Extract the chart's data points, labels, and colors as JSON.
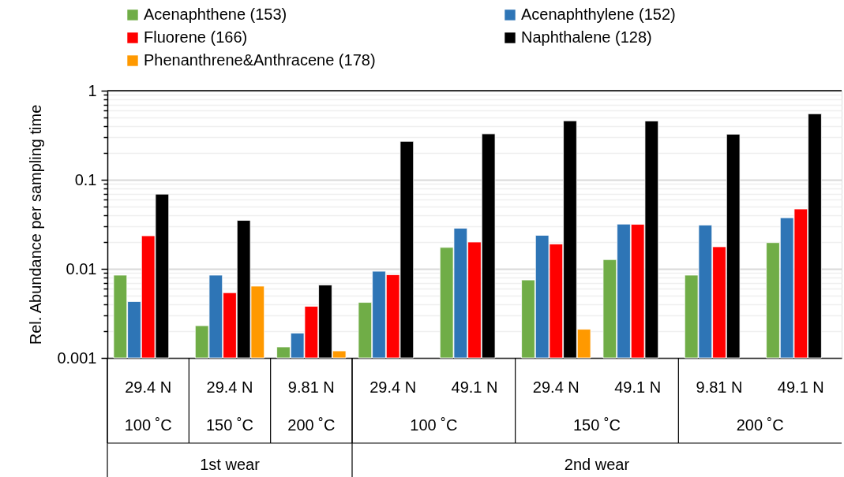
{
  "chart_data": {
    "type": "bar",
    "ylabel": "Rel. Abundance per sampling time",
    "categories": [
      "29.4 N",
      "29.4 N",
      "9.81 N",
      "29.4 N",
      "49.1 N",
      "29.4 N",
      "49.1 N",
      "9.81 N",
      "49.1 N"
    ],
    "annotations": [
      "100 ˚C",
      "150 ˚C",
      "200 ˚C",
      "100 ˚C",
      "150 ˚C",
      "200 ˚C",
      "1st wear",
      "2nd wear"
    ],
    "series": [
      {
        "name": "Acenaphthene (153)",
        "color": "#70ad47",
        "values": [
          0.0085,
          0.0023,
          0.00133,
          0.0042,
          0.0174,
          0.0075,
          0.0127,
          0.0085,
          0.0197
        ]
      },
      {
        "name": "Acenaphthylene (152)",
        "color": "#2e75b6",
        "values": [
          0.0043,
          0.0085,
          0.0019,
          0.0094,
          0.0286,
          0.0238,
          0.0318,
          0.031,
          0.0375
        ]
      },
      {
        "name": "Fluorene (166)",
        "color": "#ff0000",
        "values": [
          0.0235,
          0.0054,
          0.0038,
          0.0086,
          0.02,
          0.019,
          0.0316,
          0.0177,
          0.047
        ]
      },
      {
        "name": "Naphthalene (128)",
        "color": "#000000",
        "values": [
          0.069,
          0.035,
          0.0066,
          0.27,
          0.327,
          0.459,
          0.457,
          0.325,
          0.55
        ]
      },
      {
        "name": "Phenanthrene&Anthracene (178)",
        "color": "#ff9900",
        "values": [
          null,
          0.0064,
          0.0012,
          null,
          null,
          0.0021,
          null,
          null,
          null
        ]
      }
    ],
    "log": true,
    "ylim": [
      0.001,
      1
    ],
    "yticks": [
      0.001,
      {
        "value": 0.002,
        "label": null
      },
      {
        "value": 0.003,
        "label": null
      },
      {
        "value": 0.004,
        "label": null
      },
      {
        "value": 0.005,
        "label": null
      },
      {
        "value": 0.006,
        "label": null
      },
      {
        "value": 0.007,
        "label": null
      },
      {
        "value": 0.008,
        "label": null
      },
      {
        "value": 0.009,
        "label": null
      },
      0.01,
      {
        "value": 0.02,
        "label": null
      },
      {
        "value": 0.03,
        "label": null
      },
      {
        "value": 0.04,
        "label": null
      },
      {
        "value": 0.05,
        "label": null
      },
      {
        "value": 0.06,
        "label": null
      },
      {
        "value": 0.07,
        "label": null
      },
      {
        "value": 0.08,
        "label": null
      },
      {
        "value": 0.09,
        "label": null
      },
      0.1,
      {
        "value": 0.2,
        "label": null
      },
      {
        "value": 0.3,
        "label": null
      },
      {
        "value": 0.4,
        "label": null
      },
      {
        "value": 0.5,
        "label": null
      },
      {
        "value": 0.6,
        "label": null
      },
      {
        "value": 0.7,
        "label": null
      },
      {
        "value": 0.8,
        "label": null
      },
      {
        "value": 0.9,
        "label": null
      },
      1
    ],
    "grid": true,
    "legend": "top"
  }
}
